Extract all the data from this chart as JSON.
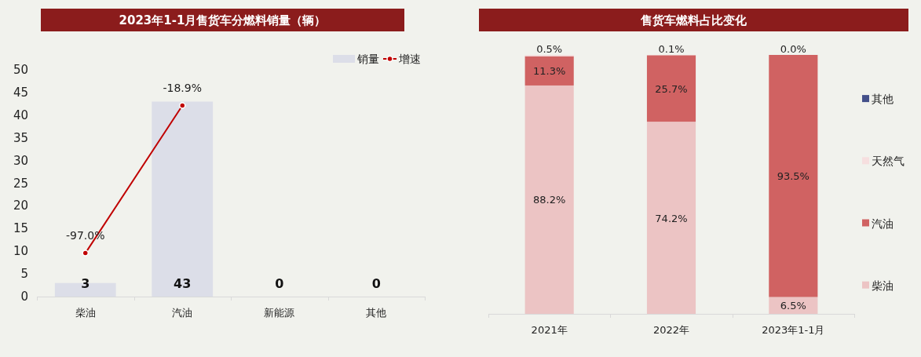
{
  "chart_data": [
    {
      "type": "bar",
      "title": "2023年1-1月售货车分燃料销量（辆）",
      "categories": [
        "柴油",
        "汽油",
        "新能源",
        "其他"
      ],
      "series": [
        {
          "name": "销量",
          "color": "#dcdee8",
          "values": [
            3,
            43,
            0,
            0
          ],
          "value_labels": [
            "3",
            "43",
            "0",
            "0"
          ]
        },
        {
          "name": "增速",
          "type": "line",
          "axis": "y2",
          "color": "#c00000",
          "values": [
            -97.0,
            -18.9,
            null,
            null
          ],
          "value_labels": [
            "-97.0%",
            "-18.9%",
            null,
            null
          ]
        }
      ],
      "ylim": [
        0,
        50
      ],
      "yticks": [
        0,
        5,
        10,
        15,
        20,
        25,
        30,
        35,
        40,
        45,
        50
      ],
      "y2lim": [
        -120,
        0
      ],
      "tick_labels": [
        "x",
        "y"
      ],
      "legend": "top right",
      "marker": "circle"
    },
    {
      "type": "bar",
      "stacked": true,
      "title": "售货车燃料占比变化",
      "categories": [
        "2021年",
        "2022年",
        "2023年1-1月"
      ],
      "series": [
        {
          "name": "柴油",
          "color": "#ecc4c4",
          "values": [
            88.2,
            74.2,
            6.5
          ],
          "value_labels": [
            "88.2%",
            "74.2%",
            "6.5%"
          ]
        },
        {
          "name": "汽油",
          "color": "#d06262",
          "values": [
            11.3,
            25.7,
            93.5
          ],
          "value_labels": [
            "11.3%",
            "25.7%",
            "93.5%"
          ]
        },
        {
          "name": "天然气",
          "color": "#f6dfdf",
          "values": [
            0.5,
            0.1,
            0.0
          ],
          "value_labels": [
            "0.5%",
            "0.1%",
            "0.0%"
          ]
        },
        {
          "name": "其他",
          "color": "#44508a",
          "values": [
            0,
            0,
            0
          ],
          "value_labels": [
            null,
            null,
            null
          ]
        }
      ],
      "ylim": [
        0,
        100
      ],
      "tick_labels": "x",
      "legend": "right"
    }
  ]
}
